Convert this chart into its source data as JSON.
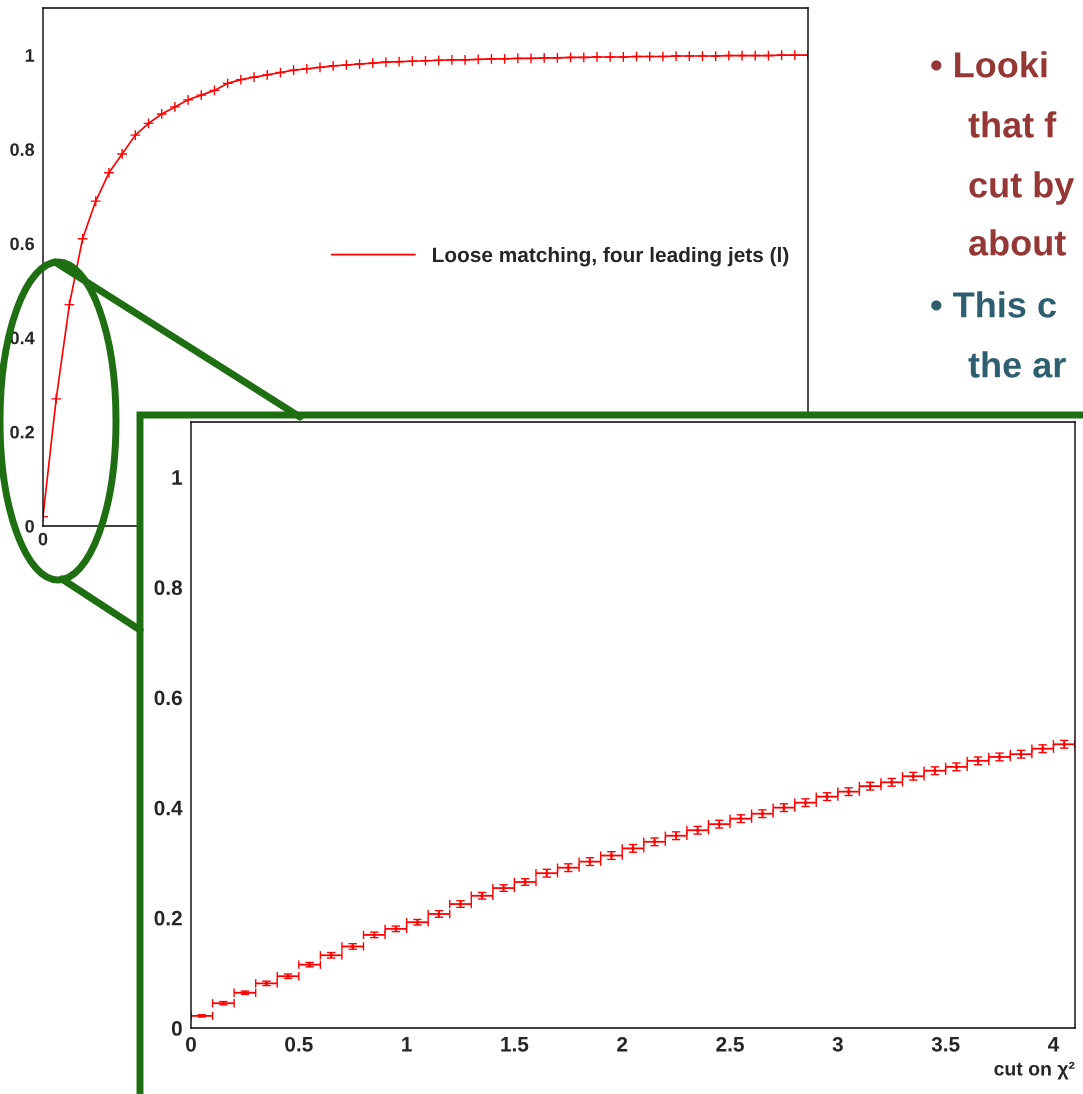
{
  "chart_data": [
    {
      "type": "line",
      "categories": [
        null,
        null,
        null,
        null,
        null,
        null,
        null,
        null,
        null,
        null,
        null,
        null,
        null,
        null,
        null,
        null,
        null,
        null,
        null,
        null,
        null,
        null,
        null,
        null,
        null,
        null,
        null,
        null,
        null,
        null,
        null,
        null,
        null,
        null,
        null,
        null,
        null,
        null,
        null,
        null,
        null,
        null,
        null,
        null,
        null,
        null,
        null,
        null,
        null,
        null,
        null,
        null,
        null,
        null,
        null,
        null,
        null,
        null,
        null
      ],
      "series": [
        {
          "name": "Loose matching, four leading jets (l)",
          "color": "#ff0000",
          "values": [
            0.02,
            0.27,
            0.47,
            0.61,
            0.69,
            0.75,
            0.79,
            0.83,
            0.855,
            0.875,
            0.89,
            0.905,
            0.915,
            0.925,
            0.94,
            0.948,
            0.953,
            0.958,
            0.963,
            0.968,
            0.971,
            0.974,
            0.977,
            0.979,
            0.981,
            0.983,
            0.985,
            0.986,
            0.987,
            0.988,
            0.989,
            0.99,
            0.99,
            0.991,
            0.992,
            0.992,
            0.993,
            0.993,
            0.994,
            0.994,
            0.995,
            0.995,
            0.996,
            0.996,
            0.996,
            0.997,
            0.997,
            0.997,
            0.998,
            0.998,
            0.998,
            0.998,
            0.999,
            0.999,
            0.999,
            0.999,
            1.0,
            1.0,
            1.0
          ]
        }
      ],
      "ylim": [
        0,
        1.1
      ],
      "yticks": [
        0,
        0.2,
        0.4,
        0.6,
        0.8,
        1
      ],
      "marker": "cross",
      "legend": "right",
      "tick_labels": "y",
      "annotations": [
        "0"
      ]
    },
    {
      "type": "scatter",
      "xlabel": "cut on χ²",
      "color": "#ff0000",
      "x": [
        0.05,
        0.15,
        0.25,
        0.35,
        0.45,
        0.55,
        0.65,
        0.75,
        0.85,
        0.95,
        1.05,
        1.15,
        1.25,
        1.35,
        1.45,
        1.55,
        1.65,
        1.75,
        1.85,
        1.95,
        2.05,
        2.15,
        2.25,
        2.35,
        2.45,
        2.55,
        2.65,
        2.75,
        2.85,
        2.95,
        3.05,
        3.15,
        3.25,
        3.35,
        3.45,
        3.55,
        3.65,
        3.75,
        3.85,
        3.95,
        4.05
      ],
      "xerrors": [
        0.05,
        0.05,
        0.05,
        0.05,
        0.05,
        0.05,
        0.05,
        0.05,
        0.05,
        0.05,
        0.05,
        0.05,
        0.05,
        0.05,
        0.05,
        0.05,
        0.05,
        0.05,
        0.05,
        0.05,
        0.05,
        0.05,
        0.05,
        0.05,
        0.05,
        0.05,
        0.05,
        0.05,
        0.05,
        0.05,
        0.05,
        0.05,
        0.05,
        0.05,
        0.05,
        0.05,
        0.05,
        0.05,
        0.05,
        0.05,
        0.05
      ],
      "values": [
        0.022,
        0.045,
        0.064,
        0.081,
        0.094,
        0.115,
        0.132,
        0.148,
        0.169,
        0.18,
        0.192,
        0.207,
        0.225,
        0.24,
        0.254,
        0.265,
        0.281,
        0.291,
        0.302,
        0.313,
        0.326,
        0.338,
        0.349,
        0.359,
        0.37,
        0.38,
        0.389,
        0.4,
        0.409,
        0.42,
        0.429,
        0.439,
        0.446,
        0.457,
        0.467,
        0.474,
        0.485,
        0.492,
        0.497,
        0.507,
        0.515
      ],
      "errors": [
        0.002,
        0.003,
        0.003,
        0.004,
        0.004,
        0.004,
        0.005,
        0.005,
        0.005,
        0.005,
        0.005,
        0.006,
        0.006,
        0.006,
        0.006,
        0.006,
        0.007,
        0.007,
        0.007,
        0.007,
        0.007,
        0.007,
        0.007,
        0.007,
        0.007,
        0.007,
        0.007,
        0.007,
        0.007,
        0.007,
        0.007,
        0.007,
        0.007,
        0.007,
        0.007,
        0.007,
        0.007,
        0.007,
        0.007,
        0.007,
        0.007
      ],
      "xlim": [
        0,
        4.1
      ],
      "xticks": [
        0,
        0.5,
        1,
        1.5,
        2,
        2.5,
        3,
        3.5,
        4
      ],
      "ylim": [
        0,
        1.1
      ],
      "yticks": [
        0,
        0.2,
        0.4,
        0.6,
        0.8,
        1
      ]
    },
    {
      "type": "other",
      "annotations": [
        "• Looki",
        "that f",
        "cut by",
        "about",
        "• This c",
        "the ar"
      ]
    }
  ]
}
